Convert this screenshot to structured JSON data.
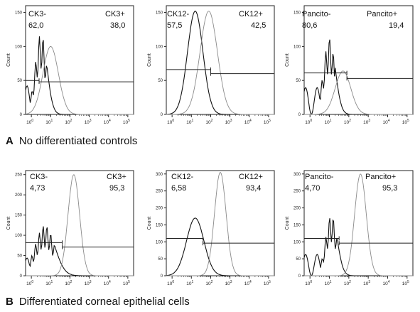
{
  "captions": {
    "A": {
      "letter": "A",
      "text": "No differentiated controls"
    },
    "B": {
      "letter": "B",
      "text": "Differentiated corneal epithelial cells"
    }
  },
  "chart_data": [
    {
      "type": "area",
      "row": "A",
      "ylabel": "Count",
      "neg_label": "CK3-",
      "neg_value": "62,0",
      "pos_label": "CK3+",
      "pos_value": "38,0",
      "yticks": [
        0,
        50,
        100,
        150
      ],
      "ylim": [
        0,
        160
      ],
      "xticks": [
        "0",
        "1",
        "2",
        "3",
        "4",
        "5"
      ],
      "xlim": [
        -0.3,
        5.3
      ],
      "gate": {
        "split": 0.4,
        "neg_level": 50,
        "pos_level": 48
      },
      "series": [
        {
          "name": "",
          "style": "black",
          "shape": "noisy",
          "center": 0.5,
          "width": 0.3,
          "peak": 120
        },
        {
          "name": "",
          "style": "gray",
          "shape": "smooth",
          "center": 1.0,
          "width": 0.4,
          "peak": 100
        }
      ]
    },
    {
      "type": "area",
      "row": "A",
      "ylabel": "Count",
      "neg_label": "CK12-",
      "neg_value": "57,5",
      "pos_label": "CK12+",
      "pos_value": "42,5",
      "yticks": [
        0,
        50,
        100,
        150
      ],
      "ylim": [
        0,
        160
      ],
      "xticks": [
        "0",
        "1",
        "2",
        "3",
        "4",
        "5"
      ],
      "xlim": [
        -0.3,
        5.3
      ],
      "gate": {
        "split": 2.0,
        "neg_level": 66,
        "pos_level": 60
      },
      "series": [
        {
          "name": "",
          "style": "black",
          "shape": "smooth",
          "center": 1.2,
          "width": 0.4,
          "peak": 152
        },
        {
          "name": "",
          "style": "gray",
          "shape": "smooth",
          "center": 1.9,
          "width": 0.45,
          "peak": 152
        }
      ]
    },
    {
      "type": "area",
      "row": "A",
      "ylabel": "Count",
      "neg_label": "Pancito-",
      "neg_value": "80,6",
      "pos_label": "Pancito+",
      "pos_value": "19,4",
      "yticks": [
        0,
        50,
        100,
        150
      ],
      "ylim": [
        0,
        160
      ],
      "xticks": [
        "0",
        "1",
        "2",
        "3",
        "4",
        "5"
      ],
      "xlim": [
        -0.3,
        5.3
      ],
      "gate": {
        "split": 1.9,
        "neg_level": 61,
        "pos_level": 53
      },
      "series": [
        {
          "name": "",
          "style": "black",
          "shape": "noisy",
          "center": 1.0,
          "width": 0.3,
          "peak": 113
        },
        {
          "name": "",
          "style": "gray",
          "shape": "smooth",
          "center": 1.7,
          "width": 0.4,
          "peak": 64
        }
      ]
    },
    {
      "type": "area",
      "row": "B",
      "ylabel": "Count",
      "neg_label": "CK3-",
      "neg_value": "4,73",
      "pos_label": "CK3+",
      "pos_value": "95,3",
      "yticks": [
        0,
        50,
        100,
        150,
        200,
        250
      ],
      "ylim": [
        0,
        260
      ],
      "xticks": [
        "0",
        "1",
        "2",
        "3",
        "4",
        "5"
      ],
      "xlim": [
        -0.3,
        5.3
      ],
      "gate": {
        "split": 1.6,
        "neg_level": 82,
        "pos_level": 71
      },
      "series": [
        {
          "name": "",
          "style": "black",
          "shape": "noisy",
          "center": 0.7,
          "width": 0.5,
          "peak": 125
        },
        {
          "name": "",
          "style": "gray",
          "shape": "smooth",
          "center": 2.2,
          "width": 0.3,
          "peak": 250
        }
      ]
    },
    {
      "type": "area",
      "row": "B",
      "ylabel": "Count",
      "neg_label": "CK12-",
      "neg_value": "6,58",
      "pos_label": "CK12+",
      "pos_value": "93,4",
      "yticks": [
        0,
        50,
        100,
        150,
        200,
        250,
        300
      ],
      "ylim": [
        0,
        310
      ],
      "xticks": [
        "0",
        "1",
        "2",
        "3",
        "4",
        "5"
      ],
      "xlim": [
        -0.3,
        5.3
      ],
      "gate": {
        "split": 1.6,
        "neg_level": 110,
        "pos_level": 96
      },
      "series": [
        {
          "name": "",
          "style": "black",
          "shape": "smooth",
          "center": 1.2,
          "width": 0.45,
          "peak": 170
        },
        {
          "name": "",
          "style": "gray",
          "shape": "smooth",
          "center": 2.5,
          "width": 0.3,
          "peak": 305
        }
      ]
    },
    {
      "type": "area",
      "row": "B",
      "ylabel": "Count",
      "neg_label": "Pancito-",
      "neg_value": "4,70",
      "pos_label": "Pancito+",
      "pos_value": "95,3",
      "yticks": [
        0,
        50,
        100,
        150,
        200,
        250,
        300
      ],
      "ylim": [
        0,
        310
      ],
      "xticks": [
        "0",
        "1",
        "2",
        "3",
        "4",
        "5"
      ],
      "xlim": [
        -0.3,
        5.3
      ],
      "gate": {
        "split": 1.5,
        "neg_level": 110,
        "pos_level": 96
      },
      "series": [
        {
          "name": "",
          "style": "black",
          "shape": "noisy",
          "center": 1.1,
          "width": 0.3,
          "peak": 180
        },
        {
          "name": "",
          "style": "gray",
          "shape": "smooth",
          "center": 2.6,
          "width": 0.3,
          "peak": 300
        }
      ]
    }
  ]
}
